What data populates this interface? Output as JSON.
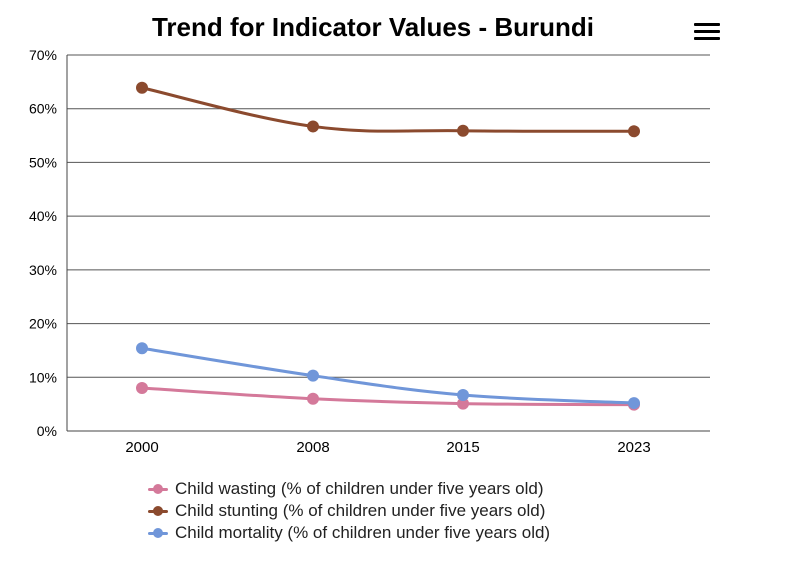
{
  "chart_data": {
    "type": "line",
    "title": "Trend for Indicator Values - Burundi",
    "categories": [
      "2000",
      "2008",
      "2015",
      "2023"
    ],
    "ylim": [
      0,
      70
    ],
    "y_ticks": [
      "0%",
      "10%",
      "20%",
      "30%",
      "40%",
      "50%",
      "60%",
      "70%"
    ],
    "y_tick_values": [
      0,
      10,
      20,
      30,
      40,
      50,
      60,
      70
    ],
    "grid": true,
    "legend_position": "bottom",
    "series": [
      {
        "name": "Child wasting (% of children under five years old)",
        "color": "#d4799a",
        "values": [
          8.0,
          6.0,
          5.1,
          4.9
        ]
      },
      {
        "name": "Child stunting (% of children under five years old)",
        "color": "#8b4a2e",
        "values": [
          63.9,
          56.7,
          55.9,
          55.8
        ]
      },
      {
        "name": "Child mortality (% of children under five years old)",
        "color": "#7096d9",
        "values": [
          15.4,
          10.3,
          6.7,
          5.2
        ]
      }
    ]
  },
  "menu": {
    "icon": "hamburger-menu-icon"
  }
}
